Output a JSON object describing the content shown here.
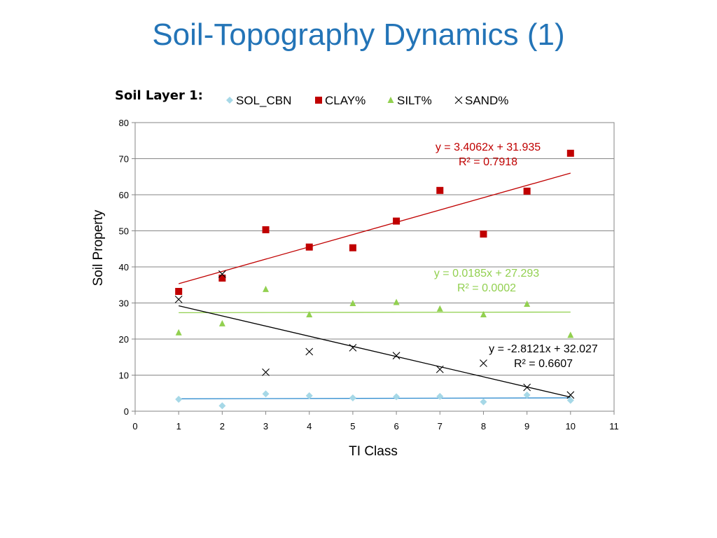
{
  "slide": {
    "title": "Soil-Topography Dynamics (1)",
    "subtitle": "Soil Layer 1:"
  },
  "chart_data": {
    "type": "scatter",
    "xlabel": "TI Class",
    "ylabel": "Soil Property",
    "xlim": [
      0,
      11
    ],
    "ylim": [
      0,
      80
    ],
    "x_ticks": [
      0,
      1,
      2,
      3,
      4,
      5,
      6,
      7,
      8,
      9,
      10,
      11
    ],
    "y_ticks": [
      0,
      10,
      20,
      30,
      40,
      50,
      60,
      70,
      80
    ],
    "grid": "horizontal",
    "legend_position": "top",
    "series": [
      {
        "name": "SOL_CBN",
        "marker": "diamond",
        "color": "#a6d8e7",
        "line_color": "#2f8ccf",
        "x": [
          1,
          2,
          3,
          4,
          5,
          6,
          7,
          8,
          9,
          10
        ],
        "y": [
          3.3,
          1.5,
          4.8,
          4.3,
          3.7,
          4.0,
          4.1,
          2.6,
          4.5,
          3.0
        ],
        "trendline": {
          "slope": 0.03,
          "intercept": 3.4,
          "equation": "",
          "r2": ""
        }
      },
      {
        "name": "CLAY%",
        "marker": "square",
        "color": "#c00000",
        "line_color": "#c00000",
        "x": [
          1,
          2,
          3,
          4,
          5,
          6,
          7,
          8,
          9,
          10
        ],
        "y": [
          33.2,
          36.9,
          50.3,
          45.5,
          45.3,
          52.7,
          61.2,
          49.1,
          61.0,
          71.5
        ],
        "trendline": {
          "slope": 3.4062,
          "intercept": 31.935,
          "equation": "y = 3.4062x + 31.935",
          "r2": "R² = 0.7918"
        }
      },
      {
        "name": "SILT%",
        "marker": "triangle",
        "color": "#92d050",
        "line_color": "#92d050",
        "x": [
          1,
          2,
          3,
          4,
          5,
          6,
          7,
          8,
          9,
          10
        ],
        "y": [
          21.8,
          24.3,
          33.8,
          26.8,
          29.9,
          30.2,
          28.4,
          26.8,
          29.7,
          21.1
        ],
        "trendline": {
          "slope": 0.0185,
          "intercept": 27.293,
          "equation": "y = 0.0185x + 27.293",
          "r2": "R² = 0.0002"
        }
      },
      {
        "name": "SAND%",
        "marker": "x",
        "color": "#000000",
        "line_color": "#000000",
        "x": [
          1,
          2,
          3,
          4,
          5,
          6,
          7,
          8,
          9,
          10
        ],
        "y": [
          31.0,
          38.0,
          10.8,
          16.5,
          17.6,
          15.4,
          11.6,
          13.3,
          6.6,
          4.5
        ],
        "trendline": {
          "slope": -2.8121,
          "intercept": 32.027,
          "equation": "y = -2.8121x + 32.027",
          "r2": "R² = 0.6607"
        }
      }
    ]
  }
}
